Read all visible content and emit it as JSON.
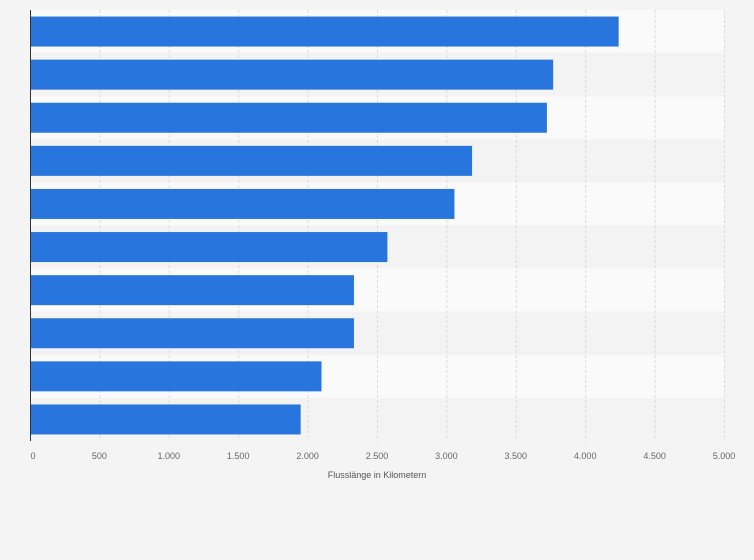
{
  "chart_data": {
    "type": "bar",
    "orientation": "horizontal",
    "title": "",
    "xlabel": "Flusslänge in Kilometern",
    "ylabel": "",
    "categories": [
      "",
      "",
      "",
      "",
      "",
      "",
      "",
      "",
      "",
      ""
    ],
    "values": [
      4241,
      3769,
      3724,
      3185,
      3058,
      2575,
      2334,
      2334,
      2100,
      1950
    ],
    "xlim": [
      0,
      5000
    ],
    "xticks": [
      0,
      500,
      1000,
      1500,
      2000,
      2500,
      3000,
      3500,
      4000,
      4500,
      5000
    ],
    "xtick_labels": [
      "0",
      "500",
      "1.000",
      "1.500",
      "2.000",
      "2.500",
      "3.000",
      "3.500",
      "4.000",
      "4.500",
      "5.000"
    ],
    "grid": true,
    "legend": "none"
  },
  "colors": {
    "bar": "#2876dd",
    "plot_band_light": "#fafafa",
    "plot_band_dark": "#f3f3f3",
    "grid": "#dcdcdc",
    "axis": "#333333",
    "page_background": "#f4f4f4"
  }
}
